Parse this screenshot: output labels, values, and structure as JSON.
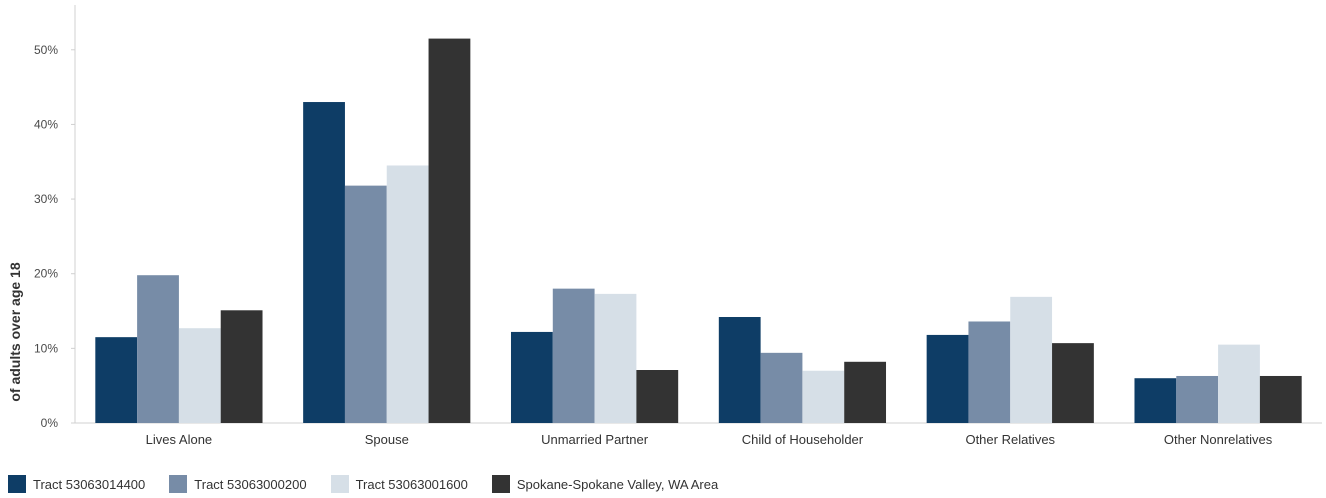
{
  "chart_data": {
    "type": "bar",
    "title": "",
    "xlabel": "",
    "ylabel": "of adults over age 18",
    "categories": [
      "Lives Alone",
      "Spouse",
      "Unmarried Partner",
      "Child of Householder",
      "Other Relatives",
      "Other Nonrelatives"
    ],
    "series": [
      {
        "name": "Tract 53063014400",
        "color": "#0e3d66",
        "values": [
          11.5,
          43.0,
          12.2,
          14.2,
          11.8,
          6.0
        ]
      },
      {
        "name": "Tract 53063000200",
        "color": "#778ca7",
        "values": [
          19.8,
          31.8,
          18.0,
          9.4,
          13.6,
          6.3
        ]
      },
      {
        "name": "Tract 53063001600",
        "color": "#d6dfe7",
        "values": [
          12.7,
          34.5,
          17.3,
          7.0,
          16.9,
          10.5
        ]
      },
      {
        "name": "Spokane-Spokane Valley, WA Area",
        "color": "#333333",
        "values": [
          15.1,
          51.5,
          7.1,
          8.2,
          10.7,
          6.3
        ]
      }
    ],
    "ylim": [
      0,
      56
    ],
    "yticks": [
      0,
      10,
      20,
      30,
      40,
      50
    ],
    "ytick_labels": [
      "0%",
      "10%",
      "20%",
      "30%",
      "40%",
      "50%"
    ],
    "grid": false,
    "legend_position": "bottom-left"
  }
}
